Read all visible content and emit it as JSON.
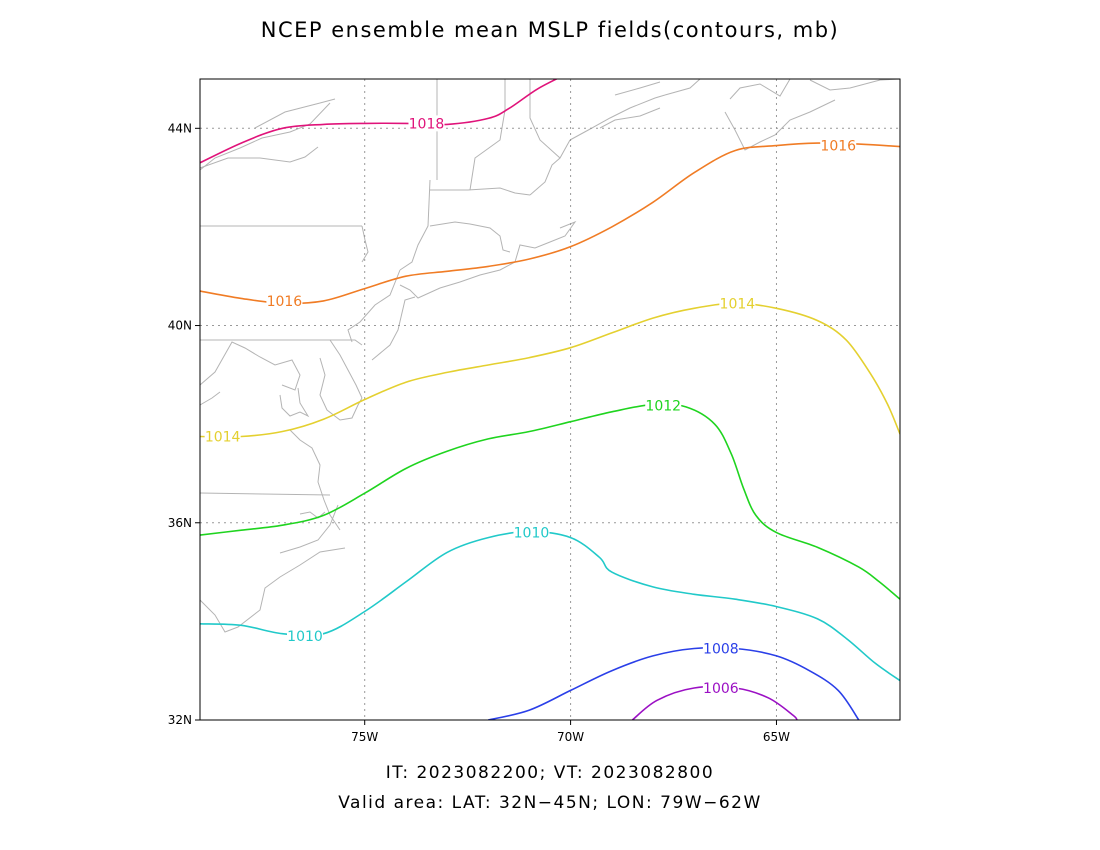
{
  "title": "NCEP ensemble mean MSLP fields(contours, mb)",
  "caption": {
    "line1": "IT: 2023082200; VT: 2023082800",
    "line2": "Valid area: LAT: 32N−45N; LON: 79W−62W"
  },
  "map": {
    "lat_range": [
      32,
      45
    ],
    "lon_range": [
      -79,
      -62
    ],
    "lat_ticks": [
      {
        "value": 32,
        "label": "32N"
      },
      {
        "value": 36,
        "label": "36N"
      },
      {
        "value": 40,
        "label": "40N"
      },
      {
        "value": 44,
        "label": "44N"
      }
    ],
    "lon_ticks": [
      {
        "value": -75,
        "label": "75W"
      },
      {
        "value": -70,
        "label": "70W"
      },
      {
        "value": -65,
        "label": "65W"
      }
    ],
    "grid": true,
    "coastline_color": "#b4b4b4"
  },
  "contours": [
    {
      "value": 1018,
      "label": "1018",
      "color": "#e0137a",
      "label_at": [
        -73.5,
        44.1
      ],
      "points": [
        [
          -79,
          43.3
        ],
        [
          -78,
          43.7
        ],
        [
          -77,
          44.0
        ],
        [
          -76,
          44.08
        ],
        [
          -75,
          44.1
        ],
        [
          -74,
          44.1
        ],
        [
          -73,
          44.08
        ],
        [
          -72,
          44.2
        ],
        [
          -71.5,
          44.4
        ],
        [
          -70.8,
          44.8
        ],
        [
          -70.1,
          45.1
        ]
      ]
    },
    {
      "value": 1016,
      "label": "1016",
      "color": "#f07c25",
      "label_at": [
        -76.95,
        40.5
      ],
      "label2_at": [
        -63.5,
        43.65
      ],
      "points": [
        [
          -79,
          40.7
        ],
        [
          -78,
          40.55
        ],
        [
          -77,
          40.45
        ],
        [
          -76,
          40.5
        ],
        [
          -75,
          40.75
        ],
        [
          -74,
          41.0
        ],
        [
          -73,
          41.1
        ],
        [
          -72,
          41.2
        ],
        [
          -71,
          41.35
        ],
        [
          -70,
          41.6
        ],
        [
          -69,
          42.0
        ],
        [
          -68,
          42.5
        ],
        [
          -67,
          43.1
        ],
        [
          -66,
          43.55
        ],
        [
          -65,
          43.65
        ],
        [
          -64,
          43.7
        ],
        [
          -63,
          43.68
        ],
        [
          -62,
          43.63
        ]
      ]
    },
    {
      "value": 1014,
      "label": "1014",
      "color": "#e4d030",
      "label_at": [
        -78.45,
        37.75
      ],
      "label2_at": [
        -65.95,
        40.45
      ],
      "points": [
        [
          -79,
          37.75
        ],
        [
          -78,
          37.75
        ],
        [
          -77,
          37.85
        ],
        [
          -76,
          38.1
        ],
        [
          -75,
          38.5
        ],
        [
          -74,
          38.85
        ],
        [
          -73,
          39.05
        ],
        [
          -72,
          39.2
        ],
        [
          -71,
          39.35
        ],
        [
          -70,
          39.55
        ],
        [
          -69,
          39.85
        ],
        [
          -68,
          40.15
        ],
        [
          -67,
          40.35
        ],
        [
          -66,
          40.45
        ],
        [
          -65,
          40.35
        ],
        [
          -64,
          40.1
        ],
        [
          -63.3,
          39.7
        ],
        [
          -62.7,
          39.0
        ],
        [
          -62.3,
          38.4
        ],
        [
          -62.0,
          37.8
        ]
      ]
    },
    {
      "value": 1012,
      "label": "1012",
      "color": "#1fd41f",
      "label_at": [
        -67.75,
        38.38
      ],
      "points": [
        [
          -79,
          35.75
        ],
        [
          -78,
          35.85
        ],
        [
          -77,
          35.95
        ],
        [
          -76,
          36.15
        ],
        [
          -75,
          36.6
        ],
        [
          -74,
          37.1
        ],
        [
          -73,
          37.45
        ],
        [
          -72,
          37.7
        ],
        [
          -71,
          37.85
        ],
        [
          -70,
          38.05
        ],
        [
          -69,
          38.25
        ],
        [
          -68,
          38.4
        ],
        [
          -67.2,
          38.35
        ],
        [
          -66.5,
          38.0
        ],
        [
          -66.1,
          37.4
        ],
        [
          -65.8,
          36.7
        ],
        [
          -65.5,
          36.15
        ],
        [
          -65,
          35.8
        ],
        [
          -64,
          35.5
        ],
        [
          -63,
          35.1
        ],
        [
          -62.5,
          34.8
        ],
        [
          -62,
          34.45
        ]
      ]
    },
    {
      "value": 1010,
      "label": "1010",
      "color": "#21c9c9",
      "label_at": [
        -70.95,
        35.8
      ],
      "label2_at": [
        -76.45,
        33.7
      ],
      "points": [
        [
          -79,
          33.95
        ],
        [
          -78,
          33.92
        ],
        [
          -77,
          33.75
        ],
        [
          -76,
          33.75
        ],
        [
          -75,
          34.2
        ],
        [
          -74,
          34.8
        ],
        [
          -73,
          35.4
        ],
        [
          -72,
          35.7
        ],
        [
          -71,
          35.82
        ],
        [
          -70,
          35.7
        ],
        [
          -69.3,
          35.3
        ],
        [
          -69,
          35.0
        ],
        [
          -68,
          34.7
        ],
        [
          -67,
          34.55
        ],
        [
          -66,
          34.45
        ],
        [
          -65,
          34.3
        ],
        [
          -64,
          34.05
        ],
        [
          -63.3,
          33.65
        ],
        [
          -62.6,
          33.15
        ],
        [
          -62,
          32.8
        ]
      ]
    },
    {
      "value": 1008,
      "label": "1008",
      "color": "#2a3fe8",
      "label_at": [
        -66.35,
        33.45
      ],
      "points": [
        [
          -72,
          32.0
        ],
        [
          -71,
          32.2
        ],
        [
          -70,
          32.6
        ],
        [
          -69,
          33.0
        ],
        [
          -68,
          33.3
        ],
        [
          -67,
          33.45
        ],
        [
          -66,
          33.45
        ],
        [
          -65,
          33.3
        ],
        [
          -64.2,
          33.0
        ],
        [
          -63.5,
          32.6
        ],
        [
          -63.0,
          32.0
        ]
      ]
    },
    {
      "value": 1006,
      "label": "1006",
      "color": "#9b10c4",
      "label_at": [
        -66.35,
        32.65
      ],
      "points": [
        [
          -68.5,
          32.0
        ],
        [
          -67.9,
          32.4
        ],
        [
          -67,
          32.65
        ],
        [
          -66,
          32.65
        ],
        [
          -65.2,
          32.45
        ],
        [
          -64.6,
          32.1
        ],
        [
          -64.5,
          32.0
        ]
      ]
    }
  ]
}
